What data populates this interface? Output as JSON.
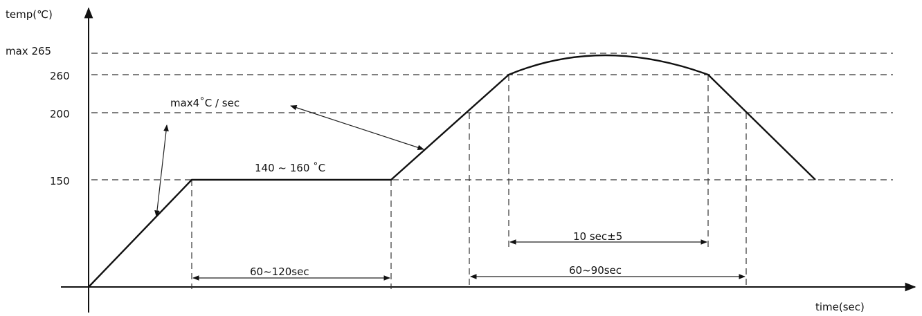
{
  "axes": {
    "y_label": "temp(℃)",
    "x_label": "time(sec)"
  },
  "y_levels": {
    "max": "max 265",
    "t260": "260",
    "t200": "200",
    "t150": "150"
  },
  "annotations": {
    "ramp_rate": "max4˚C / sec",
    "soak_range": "140 ~ 160 ˚C",
    "soak_time": "60~120sec",
    "peak_time": "10 sec±5",
    "reflow_time": "60~90sec"
  }
}
